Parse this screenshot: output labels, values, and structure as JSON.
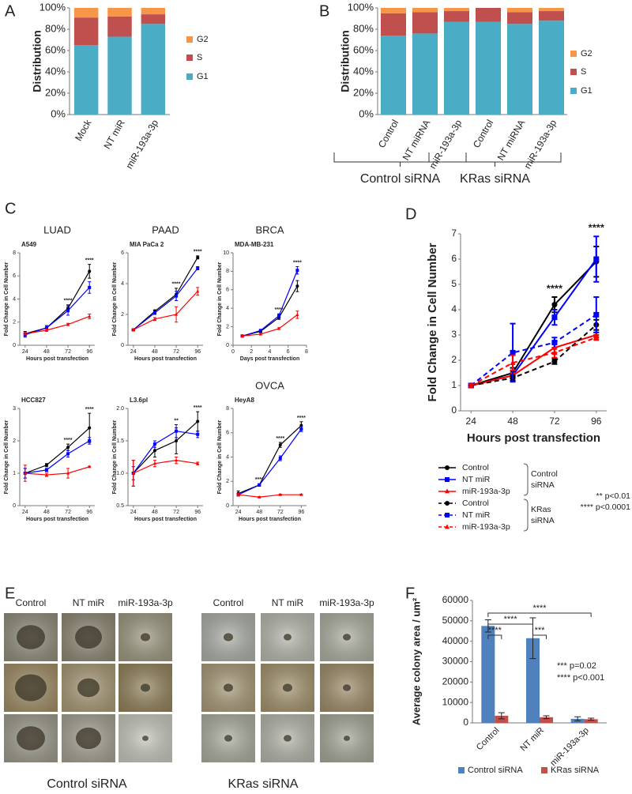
{
  "chart_data": [
    {
      "type": "bar",
      "stacked": true,
      "panel": "A",
      "ylabel": "Distribution",
      "categories": [
        "Mock",
        "NT miR",
        "miR-193a-3p"
      ],
      "series": [
        {
          "name": "G1",
          "color": "#4bacc6",
          "values": [
            65,
            73,
            85
          ]
        },
        {
          "name": "S",
          "color": "#c0504d",
          "values": [
            26,
            19,
            9
          ]
        },
        {
          "name": "G2",
          "color": "#f79646",
          "values": [
            9,
            8,
            6
          ]
        }
      ],
      "ylim": [
        0,
        100
      ],
      "yticks": [
        {
          "value": 0,
          "label": "0%"
        },
        {
          "value": 20,
          "label": "20%"
        },
        {
          "value": 40,
          "label": "40%"
        },
        {
          "value": 60,
          "label": "60%"
        },
        {
          "value": 80,
          "label": "80%"
        },
        {
          "value": 100,
          "label": "100%"
        }
      ]
    },
    {
      "type": "bar",
      "stacked": true,
      "panel": "B",
      "ylabel": "Distribution",
      "categories": [
        "Control",
        "NT miRNA",
        "miR-193a-3p",
        "Control",
        "NT miRNA",
        "miR-193a-3p"
      ],
      "group_labels": [
        "Control siRNA",
        "KRas siRNA"
      ],
      "series": [
        {
          "name": "G1",
          "color": "#4bacc6",
          "values": [
            74,
            76,
            87,
            87,
            85,
            88
          ]
        },
        {
          "name": "S",
          "color": "#c0504d",
          "values": [
            21,
            20,
            10,
            13,
            11,
            9
          ]
        },
        {
          "name": "G2",
          "color": "#f79646",
          "values": [
            5,
            4,
            3,
            0,
            4,
            3
          ]
        }
      ],
      "ylim": [
        0,
        100
      ],
      "yticks": [
        {
          "value": 0,
          "label": "0%"
        },
        {
          "value": 20,
          "label": "20%"
        },
        {
          "value": 40,
          "label": "40%"
        },
        {
          "value": 60,
          "label": "60%"
        },
        {
          "value": 80,
          "label": "80%"
        },
        {
          "value": 100,
          "label": "100%"
        }
      ]
    },
    {
      "type": "line",
      "panel": "C",
      "header": "LUAD",
      "title": "A549",
      "xlabel": "Hours post transfection",
      "ylabel": "Fold Change in Cell Number",
      "x": [
        24,
        48,
        72,
        96
      ],
      "xlim": [
        18,
        102
      ],
      "xticks": [
        24,
        48,
        72,
        96
      ],
      "ylim": [
        0,
        8
      ],
      "yticks": [
        0,
        2,
        4,
        6,
        8
      ],
      "series": [
        {
          "color": "#000000",
          "marker": "circle",
          "values": [
            1.0,
            1.5,
            3.2,
            6.4
          ],
          "errors": [
            0.2,
            0.2,
            0.3,
            0.6
          ]
        },
        {
          "color": "#0000ff",
          "marker": "square",
          "values": [
            0.9,
            1.5,
            3.0,
            5.0
          ],
          "errors": [
            0.2,
            0.2,
            0.4,
            0.5
          ]
        },
        {
          "color": "#ff0000",
          "marker": "triangle",
          "values": [
            1.0,
            1.3,
            1.8,
            2.5
          ],
          "errors": [
            0.1,
            0.1,
            0.1,
            0.2
          ]
        }
      ],
      "annotations": [
        {
          "x": 72,
          "text": "****"
        },
        {
          "x": 96,
          "text": "****"
        }
      ]
    },
    {
      "type": "line",
      "header": "PAAD",
      "title": "MIA PaCa 2",
      "xlabel": "Hours post transfection",
      "ylabel": "Fold Change in Cell Number",
      "x": [
        24,
        48,
        72,
        96
      ],
      "xlim": [
        18,
        102
      ],
      "xticks": [
        24,
        48,
        72,
        96
      ],
      "ylim": [
        0,
        6
      ],
      "yticks": [
        0,
        2,
        4,
        6
      ],
      "series": [
        {
          "color": "#000000",
          "marker": "circle",
          "values": [
            1.0,
            2.2,
            3.3,
            5.7
          ],
          "errors": [
            0.05,
            0.1,
            0.4,
            0.1
          ]
        },
        {
          "color": "#0000ff",
          "marker": "square",
          "values": [
            1.0,
            2.1,
            3.2,
            5.0
          ],
          "errors": [
            0.05,
            0.1,
            0.3,
            0.1
          ]
        },
        {
          "color": "#ff0000",
          "marker": "triangle",
          "values": [
            1.0,
            1.7,
            2.0,
            3.5
          ],
          "errors": [
            0.05,
            0.1,
            0.5,
            0.25
          ]
        }
      ],
      "annotations": [
        {
          "x": 72,
          "text": "****"
        },
        {
          "x": 96,
          "text": "****"
        }
      ]
    },
    {
      "type": "line",
      "header": "BRCA",
      "title": "MDA-MB-231",
      "xlabel": "Days post transfection",
      "ylabel": "Fold Change in Cell Number",
      "x": [
        1,
        3,
        5,
        7
      ],
      "xlim": [
        0,
        8
      ],
      "xticks": [
        0,
        2,
        4,
        6,
        8
      ],
      "ylim": [
        0,
        10
      ],
      "yticks": [
        0,
        2,
        4,
        6,
        8,
        10
      ],
      "series": [
        {
          "color": "#000000",
          "marker": "circle",
          "values": [
            1.0,
            1.5,
            3.0,
            6.4
          ],
          "errors": [
            0.1,
            0.1,
            0.2,
            0.6
          ]
        },
        {
          "color": "#0000ff",
          "marker": "square",
          "values": [
            1.0,
            1.6,
            3.2,
            8.1
          ],
          "errors": [
            0.1,
            0.1,
            0.2,
            0.4
          ]
        },
        {
          "color": "#ff0000",
          "marker": "triangle",
          "values": [
            1.0,
            1.2,
            1.8,
            3.3
          ],
          "errors": [
            0.1,
            0.1,
            0.1,
            0.4
          ]
        }
      ],
      "annotations": [
        {
          "x": 5,
          "text": "****"
        },
        {
          "x": 7,
          "text": "****"
        }
      ]
    },
    {
      "type": "line",
      "title": "HCC827",
      "xlabel": "Hours post transfection",
      "ylabel": "Fold Change in Cell Number",
      "x": [
        24,
        48,
        72,
        96
      ],
      "xlim": [
        18,
        102
      ],
      "xticks": [
        24,
        48,
        72,
        96
      ],
      "ylim": [
        0,
        3
      ],
      "yticks": [
        0,
        1,
        2,
        3
      ],
      "series": [
        {
          "color": "#000000",
          "marker": "circle",
          "values": [
            1.0,
            1.25,
            1.8,
            2.4
          ],
          "errors": [
            0.15,
            0.05,
            0.1,
            0.45
          ]
        },
        {
          "color": "#0000ff",
          "marker": "square",
          "values": [
            1.0,
            1.1,
            1.6,
            2.0
          ],
          "errors": [
            0.15,
            0.05,
            0.1,
            0.1
          ]
        },
        {
          "color": "#ff0000",
          "marker": "triangle",
          "values": [
            1.0,
            0.95,
            1.0,
            1.2
          ],
          "errors": [
            0.25,
            0.05,
            0.15,
            0.02
          ]
        }
      ],
      "annotations": [
        {
          "x": 72,
          "text": "****"
        },
        {
          "x": 96,
          "text": "****"
        }
      ]
    },
    {
      "type": "line",
      "title": "L3.6pl",
      "xlabel": "Hours post transfection",
      "ylabel": "Fold Change in Cell Number",
      "x": [
        24,
        48,
        72,
        96
      ],
      "xlim": [
        18,
        102
      ],
      "xticks": [
        24,
        48,
        72,
        96
      ],
      "ylim": [
        0.5,
        2.0
      ],
      "yticks": [
        0.5,
        {
          "value": 1,
          "label": "1.0"
        },
        1.5,
        {
          "value": 2,
          "label": "2.0"
        }
      ],
      "series": [
        {
          "color": "#000000",
          "marker": "circle",
          "values": [
            1.0,
            1.35,
            1.5,
            1.8
          ],
          "errors": [
            0.2,
            0.1,
            0.2,
            0.15
          ]
        },
        {
          "color": "#0000ff",
          "marker": "square",
          "values": [
            1.0,
            1.45,
            1.65,
            1.6
          ],
          "errors": [
            0.1,
            0.05,
            0.1,
            0.05
          ]
        },
        {
          "color": "#ff0000",
          "marker": "triangle",
          "values": [
            1.0,
            1.15,
            1.2,
            1.15
          ],
          "errors": [
            0.2,
            0.05,
            0.05,
            0.02
          ]
        }
      ],
      "annotations": [
        {
          "x": 72,
          "text": "**"
        },
        {
          "x": 96,
          "text": "****"
        }
      ]
    },
    {
      "type": "line",
      "header": "OVCA",
      "title": "HeyA8",
      "xlabel": "Hours post transfection",
      "ylabel": "Fold Change in Cell Number",
      "x": [
        24,
        48,
        72,
        96
      ],
      "xlim": [
        18,
        102
      ],
      "xticks": [
        24,
        48,
        72,
        96
      ],
      "ylim": [
        0,
        8
      ],
      "yticks": [
        0,
        2,
        4,
        6,
        8
      ],
      "series": [
        {
          "color": "#000000",
          "marker": "circle",
          "values": [
            1.0,
            1.7,
            5.0,
            6.6
          ],
          "errors": [
            0.2,
            0.1,
            0.2,
            0.3
          ]
        },
        {
          "color": "#0000ff",
          "marker": "square",
          "values": [
            0.9,
            1.7,
            3.9,
            6.3
          ],
          "errors": [
            0.1,
            0.1,
            0.2,
            0.2
          ]
        },
        {
          "color": "#ff0000",
          "marker": "triangle",
          "values": [
            0.9,
            0.7,
            0.9,
            0.9
          ],
          "errors": [
            0.1,
            0.05,
            0.05,
            0.05
          ]
        }
      ],
      "annotations": [
        {
          "x": 48,
          "text": "****"
        },
        {
          "x": 72,
          "text": "****"
        },
        {
          "x": 96,
          "text": "****"
        }
      ]
    },
    {
      "type": "line",
      "panel": "D",
      "xlabel": "Hours post transfection",
      "ylabel": "Fold Change in Cell Number",
      "x": [
        24,
        48,
        72,
        96
      ],
      "xlim": [
        18,
        102
      ],
      "xticks": [
        24,
        48,
        72,
        96
      ],
      "ylim": [
        0,
        7
      ],
      "yticks": [
        0,
        1,
        2,
        3,
        4,
        5,
        6,
        7
      ],
      "legend_groups": [
        "Control siRNA",
        "KRas siRNA"
      ],
      "notes": [
        "** p<0.01",
        "**** p<0.0001"
      ],
      "series": [
        {
          "name": "Control",
          "color": "#000000",
          "marker": "circle",
          "dashed": false,
          "values": [
            1.0,
            1.5,
            4.2,
            5.9
          ],
          "errors": [
            0.05,
            0.2,
            0.3,
            0.6
          ]
        },
        {
          "name": "NT miR",
          "color": "#0000ff",
          "marker": "square",
          "dashed": false,
          "values": [
            1.0,
            1.4,
            3.7,
            6.0
          ],
          "errors": [
            0.05,
            0.2,
            0.3,
            0.9
          ]
        },
        {
          "name": "miR-193a-3p",
          "color": "#ff0000",
          "marker": "triangle",
          "dashed": false,
          "values": [
            1.0,
            1.4,
            2.5,
            3.0
          ],
          "errors": [
            0.05,
            0.1,
            0.2,
            0.1
          ]
        },
        {
          "name": "Control",
          "color": "#000000",
          "marker": "circle",
          "dashed": true,
          "values": [
            1.0,
            1.3,
            1.95,
            3.4
          ],
          "errors": [
            0.05,
            0.1,
            0.1,
            0.2
          ]
        },
        {
          "name": "NT miR",
          "color": "#0000ff",
          "marker": "square",
          "dashed": true,
          "values": [
            1.0,
            2.3,
            2.7,
            3.8
          ],
          "errors": [
            0.05,
            1.15,
            0.2,
            0.7
          ]
        },
        {
          "name": "miR-193a-3p",
          "color": "#ff0000",
          "marker": "triangle",
          "dashed": true,
          "values": [
            1.0,
            1.9,
            2.3,
            2.9
          ],
          "errors": [
            0.05,
            0.3,
            0.2,
            0.1
          ]
        }
      ],
      "annotations": [
        {
          "x": 72,
          "text": "****"
        },
        {
          "x": 96,
          "text": "****"
        }
      ]
    },
    {
      "type": "bar",
      "stacked": false,
      "panel": "F",
      "ylabel": "Average colony area / um²",
      "categories": [
        "Control",
        "NT miR",
        "miR-193a-3p"
      ],
      "series": [
        {
          "name": "Control siRNA",
          "color": "#4f81bd",
          "values": [
            47500,
            41500,
            2000
          ],
          "errors": [
            3000,
            10000,
            1000
          ]
        },
        {
          "name": "KRas siRNA",
          "color": "#c0504d",
          "values": [
            3500,
            2800,
            1800
          ],
          "errors": [
            1500,
            700,
            500
          ]
        }
      ],
      "ylim": [
        0,
        60000
      ],
      "yticks": [
        0,
        10000,
        20000,
        30000,
        40000,
        50000,
        60000
      ],
      "brackets": [
        "****",
        "***",
        "****",
        "****"
      ],
      "notes": [
        "*** p=0.02",
        "**** p<0.001"
      ]
    }
  ],
  "images": {
    "panel": "E",
    "columns": [
      "Control",
      "NT miR",
      "miR-193a-3p",
      "Control",
      "NT miR",
      "miR-193a-3p"
    ],
    "groups": [
      "Control siRNA",
      "KRas siRNA"
    ]
  }
}
